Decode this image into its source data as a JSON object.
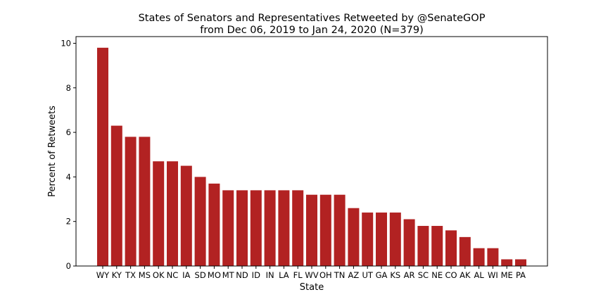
{
  "chart_data": {
    "type": "bar",
    "title_line1": "States of Senators and Representatives Retweeted by @SenateGOP",
    "title_line2": "from Dec 06, 2019 to Jan 24, 2020 (N=379)",
    "xlabel": "State",
    "ylabel": "Percent of Retweets",
    "ylim": [
      0,
      10.3
    ],
    "yticks": [
      "0",
      "2",
      "4",
      "6",
      "8",
      "10"
    ],
    "grid": false,
    "bar_color": "#b22222",
    "categories": [
      "WY",
      "KY",
      "TX",
      "MS",
      "OK",
      "NC",
      "IA",
      "SD",
      "MO",
      "MT",
      "ND",
      "ID",
      "IN",
      "LA",
      "FL",
      "WV",
      "OH",
      "TN",
      "AZ",
      "UT",
      "GA",
      "KS",
      "AR",
      "SC",
      "NE",
      "CO",
      "AK",
      "AL",
      "WI",
      "ME",
      "PA"
    ],
    "values": [
      9.8,
      6.3,
      5.8,
      5.8,
      4.7,
      4.7,
      4.5,
      4.0,
      3.7,
      3.4,
      3.4,
      3.4,
      3.4,
      3.4,
      3.4,
      3.2,
      3.2,
      3.2,
      2.6,
      2.4,
      2.4,
      2.4,
      2.1,
      1.8,
      1.8,
      1.6,
      1.3,
      0.8,
      0.8,
      0.3,
      0.3
    ]
  }
}
